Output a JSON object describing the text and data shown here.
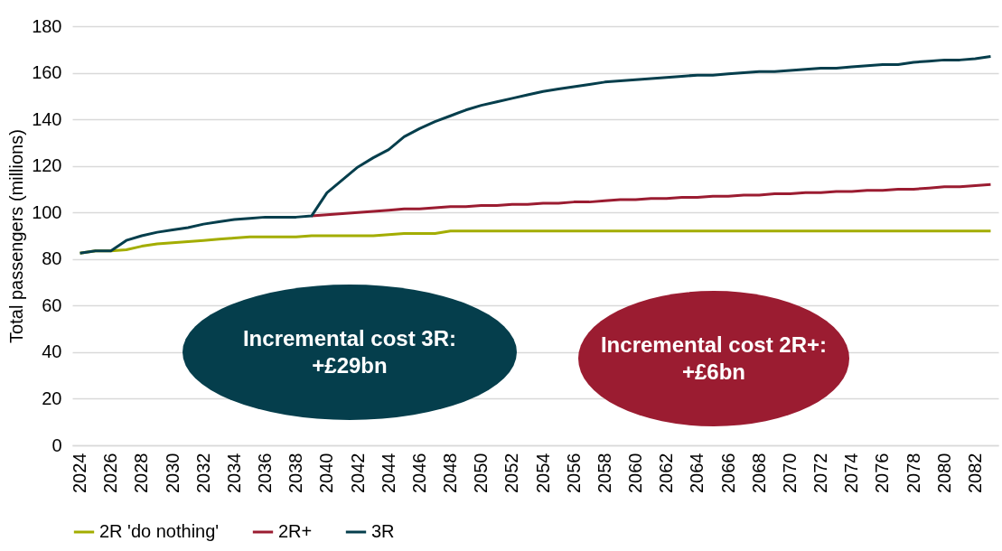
{
  "chart_data": {
    "type": "line",
    "ylabel": "Total passengers (millions)",
    "x": [
      2024,
      2025,
      2026,
      2027,
      2028,
      2029,
      2030,
      2031,
      2032,
      2033,
      2034,
      2035,
      2036,
      2037,
      2038,
      2039,
      2040,
      2041,
      2042,
      2043,
      2044,
      2045,
      2046,
      2047,
      2048,
      2049,
      2050,
      2051,
      2052,
      2053,
      2054,
      2055,
      2056,
      2057,
      2058,
      2059,
      2060,
      2061,
      2062,
      2063,
      2064,
      2065,
      2066,
      2067,
      2068,
      2069,
      2070,
      2071,
      2072,
      2073,
      2074,
      2075,
      2076,
      2077,
      2078,
      2079,
      2080,
      2081,
      2082,
      2083
    ],
    "xlim": [
      2023.5,
      2083.5
    ],
    "xticks": [
      2024,
      2026,
      2028,
      2030,
      2032,
      2034,
      2036,
      2038,
      2040,
      2042,
      2044,
      2046,
      2048,
      2050,
      2052,
      2054,
      2056,
      2058,
      2060,
      2062,
      2064,
      2066,
      2068,
      2070,
      2072,
      2074,
      2076,
      2078,
      2080,
      2082
    ],
    "ylim": [
      0,
      180
    ],
    "yticks": [
      0,
      20,
      40,
      60,
      80,
      100,
      120,
      140,
      160,
      180
    ],
    "grid": "y",
    "legend": "bottom",
    "line_style": "solid",
    "series": [
      {
        "name": "2R 'do nothing'",
        "color": "#a3ad00",
        "values": [
          82.5,
          83.5,
          83.5,
          84,
          85.5,
          86.5,
          87,
          87.5,
          88,
          88.5,
          89,
          89.5,
          89.5,
          89.5,
          89.5,
          90,
          90,
          90,
          90,
          90,
          90.5,
          91,
          91,
          91,
          92,
          92,
          92,
          92,
          92,
          92,
          92,
          92,
          92,
          92,
          92,
          92,
          92,
          92,
          92,
          92,
          92,
          92,
          92,
          92,
          92,
          92,
          92,
          92,
          92,
          92,
          92,
          92,
          92,
          92,
          92,
          92,
          92,
          92,
          92,
          92
        ]
      },
      {
        "name": "2R+",
        "color": "#9b1c31",
        "values": [
          null,
          null,
          null,
          null,
          null,
          null,
          null,
          null,
          null,
          null,
          null,
          null,
          null,
          null,
          null,
          98.5,
          99,
          99.5,
          100,
          100.5,
          101,
          101.5,
          101.5,
          102,
          102.5,
          102.5,
          103,
          103,
          103.5,
          103.5,
          104,
          104,
          104.5,
          104.5,
          105,
          105.5,
          105.5,
          106,
          106,
          106.5,
          106.5,
          107,
          107,
          107.5,
          107.5,
          108,
          108,
          108.5,
          108.5,
          109,
          109,
          109.5,
          109.5,
          110,
          110,
          110.5,
          111,
          111,
          111.5,
          112
        ]
      },
      {
        "name": "3R",
        "color": "#053e4c",
        "values": [
          82.5,
          83.5,
          83.5,
          88,
          90,
          91.5,
          92.5,
          93.5,
          95,
          96,
          97,
          97.5,
          98,
          98,
          98,
          98.5,
          108.5,
          114,
          119.5,
          123.5,
          127,
          132.5,
          136,
          139,
          141.5,
          144,
          146,
          147.5,
          149,
          150.5,
          152,
          153,
          154,
          155,
          156,
          156.5,
          157,
          157.5,
          158,
          158.5,
          159,
          159,
          159.5,
          160,
          160.5,
          160.5,
          161,
          161.5,
          162,
          162,
          162.5,
          163,
          163.5,
          163.5,
          164.5,
          165,
          165.5,
          165.5,
          166,
          167
        ]
      }
    ],
    "annotations": [
      "Incremental cost 3R: +£29bn",
      "Incremental cost 2R+: +£6bn"
    ]
  }
}
